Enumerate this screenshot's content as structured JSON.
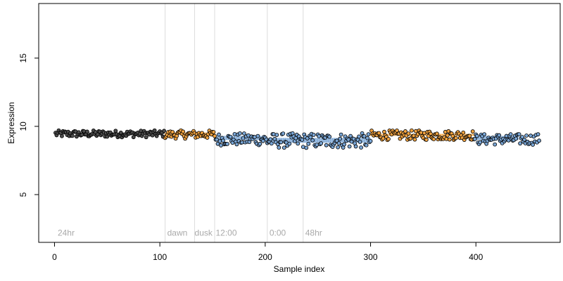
{
  "chart_data": {
    "type": "scatter",
    "xlabel": "Sample index",
    "ylabel": "Expression",
    "xlim": [
      -15,
      480
    ],
    "ylim": [
      1.5,
      19
    ],
    "xticks": [
      0,
      100,
      200,
      300,
      400
    ],
    "yticks": [
      5,
      10,
      15
    ],
    "grid": false,
    "vlines": [
      105,
      133,
      152,
      202,
      236
    ],
    "annotations": [
      {
        "label": "24hr",
        "x": 3,
        "y": 2
      },
      {
        "label": "dawn",
        "x": 107,
        "y": 2
      },
      {
        "label": "dusk",
        "x": 133,
        "y": 2
      },
      {
        "label": "12:00",
        "x": 153,
        "y": 2
      },
      {
        "label": "0:00",
        "x": 204,
        "y": 2
      },
      {
        "label": "48hr",
        "x": 238,
        "y": 2
      }
    ],
    "series": [
      {
        "role": "background-bars",
        "segments": [
          {
            "x_range": [
              1,
              104
            ],
            "color": "#4d4d4d",
            "y_base": 9.55,
            "y_top": 9.45
          },
          {
            "x_range": [
              105,
              152
            ],
            "color": "#f4a440",
            "y_base": 9.55,
            "y_top": 9.38
          },
          {
            "x_range": [
              153,
              200
            ],
            "color": "#7aa6d6",
            "y_base": 9.0,
            "y_top": 9.3
          },
          {
            "x_range": [
              201,
              300
            ],
            "color": "#7aa6d6",
            "y_base": 8.8,
            "y_top": 9.15
          },
          {
            "x_range": [
              300,
              398
            ],
            "color": "#f4a440",
            "y_base": 9.3,
            "y_top": 9.45
          },
          {
            "x_range": [
              399,
              440
            ],
            "color": "#7aa6d6",
            "y_base": 9.0,
            "y_top": 9.3
          }
        ]
      },
      {
        "role": "points",
        "segments": [
          {
            "x_range": [
              1,
              104
            ],
            "mean": 9.45,
            "spread": 0.25,
            "color": "#4d4d4d"
          },
          {
            "x_range": [
              105,
              152
            ],
            "mean": 9.4,
            "spread": 0.3,
            "color": "#f4a440"
          },
          {
            "x_range": [
              153,
              200
            ],
            "mean": 9.05,
            "spread": 0.45,
            "color": "#7aa6d6"
          },
          {
            "x_range": [
              201,
              300
            ],
            "mean": 8.95,
            "spread": 0.55,
            "color": "#7aa6d6"
          },
          {
            "x_range": [
              301,
              398
            ],
            "mean": 9.35,
            "spread": 0.35,
            "color": "#f4a440"
          },
          {
            "x_range": [
              399,
              460
            ],
            "mean": 9.05,
            "spread": 0.4,
            "color": "#7aa6d6"
          }
        ]
      }
    ]
  }
}
